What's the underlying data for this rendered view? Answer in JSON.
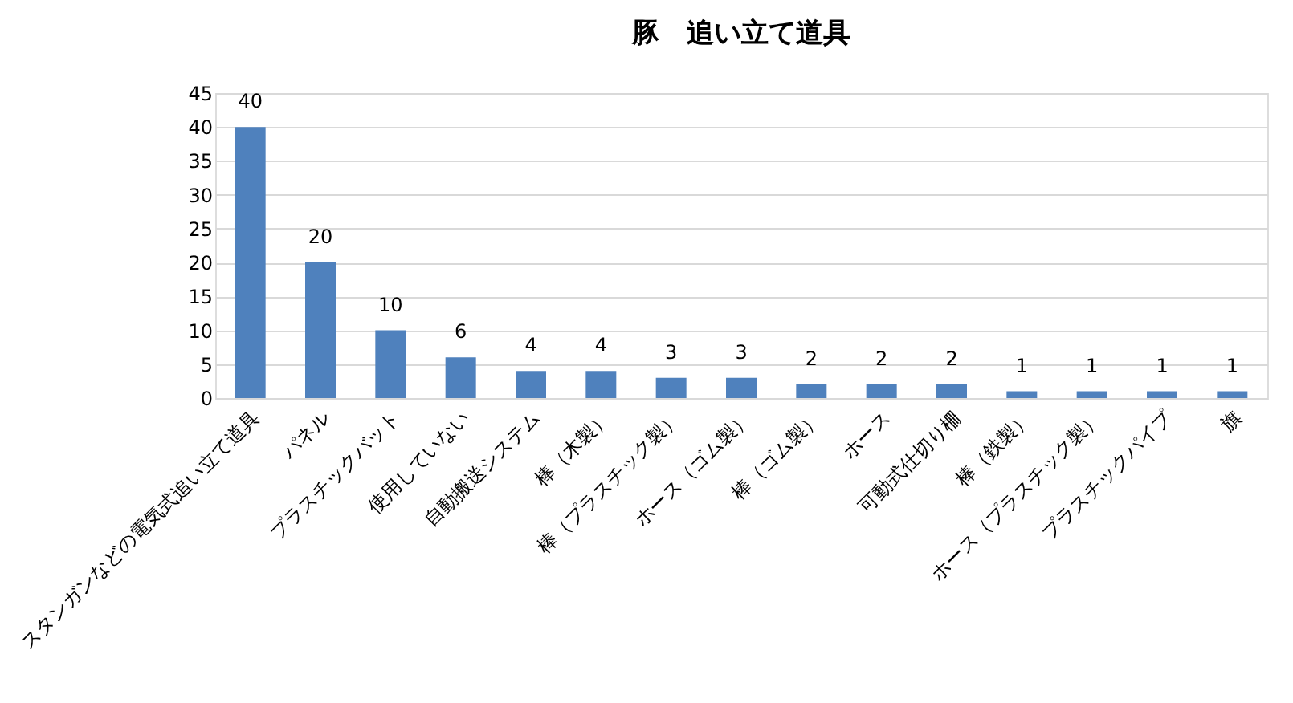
{
  "chart_data": {
    "type": "bar",
    "title": "豚　追い立て道具",
    "categories": [
      "スタンガンなどの電気式追い立て道具",
      "パネル",
      "プラスチックバット",
      "使用していない",
      "自動搬送システム",
      "棒（木製）",
      "棒（プラスチック製）",
      "ホース（ゴム製）",
      "棒（ゴム製）",
      "ホース",
      "可動式仕切り柵",
      "棒（鉄製）",
      "ホース（プラスチック製）",
      "プラスチックパイプ",
      "旗"
    ],
    "values": [
      40,
      20,
      10,
      6,
      4,
      4,
      3,
      3,
      2,
      2,
      2,
      1,
      1,
      1,
      1
    ],
    "color": "#4f81bd",
    "ylim": [
      0,
      45
    ],
    "yticks": [
      0,
      5,
      10,
      15,
      20,
      25,
      30,
      35,
      40,
      45
    ],
    "grid": "y",
    "data_labels": true
  }
}
